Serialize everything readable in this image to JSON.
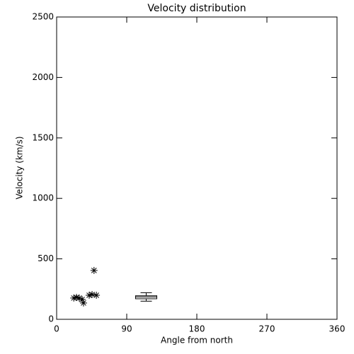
{
  "chart_data": {
    "type": "scatter",
    "title": "Velocity distribution",
    "xlabel": "Angle from north",
    "ylabel": "Velocity (km/s)",
    "x": [
      22,
      25.5,
      29,
      32.7,
      34.5,
      41.8,
      45.5,
      48,
      51
    ],
    "values": [
      176,
      181,
      176,
      164,
      135,
      199,
      205,
      404,
      199
    ],
    "color": "#000000",
    "box": {
      "x": 115,
      "whislo": 150,
      "q1": 170,
      "med": 185,
      "q3": 195,
      "whishi": 220
    },
    "xlim": [
      0,
      360
    ],
    "xticks": [
      0,
      90,
      180,
      270,
      360
    ],
    "ylim": [
      0,
      2500
    ],
    "yticks": [
      0,
      500,
      1000,
      1500,
      2000,
      2500
    ],
    "grid": false
  }
}
